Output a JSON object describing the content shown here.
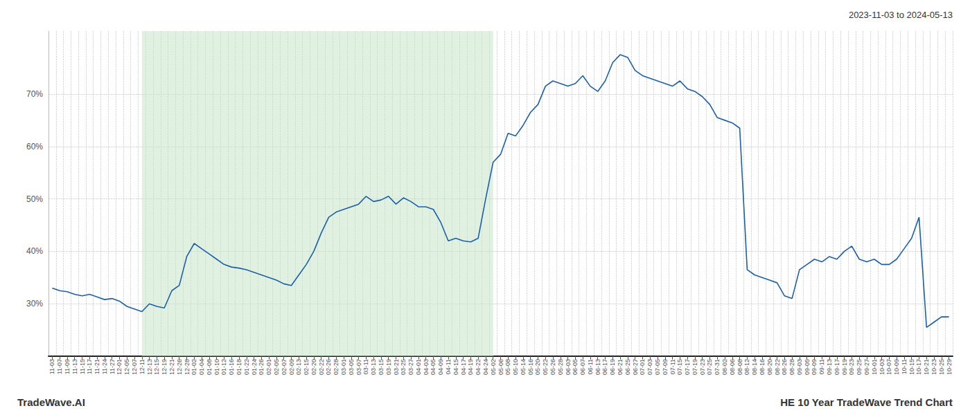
{
  "chart_data": {
    "type": "line",
    "title": "HE 10 Year TradeWave Trend Chart",
    "subtitle": "2023-11-03 to 2024-05-13",
    "annotations": [
      "TradeWave.AI"
    ],
    "color": "#1a5fa8",
    "grid": true,
    "ylim": [
      20,
      82
    ],
    "yticks": [
      {
        "value": 30,
        "label": "30%"
      },
      {
        "value": 40,
        "label": "40%"
      },
      {
        "value": 50,
        "label": "50%"
      },
      {
        "value": 60,
        "label": "60%"
      },
      {
        "value": 70,
        "label": "70%"
      }
    ],
    "highlight": {
      "start": "12-11",
      "end": "05-02",
      "color": "#c8e6c8"
    },
    "categories": [
      "11-03",
      "11-07",
      "11-09",
      "11-13",
      "11-15",
      "11-17",
      "11-21",
      "11-24",
      "11-27",
      "12-01",
      "12-05",
      "12-07",
      "12-11",
      "12-13",
      "12-15",
      "12-19",
      "12-21",
      "12-26",
      "12-28",
      "01-02",
      "01-04",
      "01-08",
      "01-10",
      "01-12",
      "01-16",
      "01-18",
      "01-22",
      "01-24",
      "01-26",
      "02-01",
      "02-05",
      "02-07",
      "02-09",
      "02-13",
      "02-15",
      "02-20",
      "02-22",
      "02-26",
      "02-28",
      "03-01",
      "03-05",
      "03-07",
      "03-11",
      "03-13",
      "03-15",
      "03-19",
      "03-21",
      "03-25",
      "03-27",
      "04-01",
      "04-03",
      "04-05",
      "04-09",
      "04-11",
      "04-15",
      "04-17",
      "04-19",
      "04-22",
      "04-24",
      "05-02",
      "05-06",
      "05-08",
      "05-10",
      "05-14",
      "05-16",
      "05-20",
      "05-22",
      "05-26",
      "05-28",
      "06-03",
      "06-05",
      "06-07",
      "06-11",
      "06-13",
      "06-17",
      "06-19",
      "06-21",
      "06-25",
      "06-27",
      "07-01",
      "07-03",
      "07-05",
      "07-09",
      "07-11",
      "07-15",
      "07-17",
      "07-19",
      "07-23",
      "07-25",
      "07-31",
      "08-02",
      "08-06",
      "08-08",
      "08-12",
      "08-14",
      "08-16",
      "08-20",
      "08-22",
      "08-26",
      "08-28",
      "09-03",
      "09-05",
      "09-09",
      "09-11",
      "09-13",
      "09-17",
      "09-19",
      "09-23",
      "09-25",
      "09-27",
      "10-01",
      "10-03",
      "10-07",
      "10-09",
      "10-11",
      "10-15",
      "10-17",
      "10-21",
      "10-23",
      "10-25",
      "10-29"
    ],
    "values": [
      33.0,
      32.5,
      32.3,
      31.8,
      31.5,
      31.8,
      31.3,
      30.8,
      31.0,
      30.5,
      29.5,
      29.0,
      28.5,
      30.0,
      29.5,
      29.2,
      32.5,
      33.5,
      39.0,
      41.5,
      40.5,
      39.5,
      38.5,
      37.5,
      37.0,
      36.8,
      36.5,
      36.0,
      35.5,
      35.0,
      34.5,
      33.8,
      33.5,
      35.5,
      37.5,
      40.0,
      43.5,
      46.5,
      47.5,
      48.0,
      48.5,
      49.0,
      50.5,
      49.5,
      49.8,
      50.5,
      49.0,
      50.2,
      49.5,
      48.5,
      48.5,
      48.0,
      45.5,
      42.0,
      42.5,
      42.0,
      41.8,
      42.5,
      50.0,
      57.0,
      58.5,
      62.5,
      62.0,
      64.0,
      66.5,
      68.0,
      71.5,
      72.5,
      72.0,
      71.5,
      72.0,
      73.5,
      71.5,
      70.5,
      72.5,
      76.0,
      77.5,
      77.0,
      74.5,
      73.5,
      73.0,
      72.5,
      72.0,
      71.5,
      72.5,
      71.0,
      70.5,
      69.5,
      68.0,
      65.5,
      65.0,
      64.5,
      63.5,
      36.5,
      35.5,
      35.0,
      34.5,
      34.0,
      31.5,
      31.0,
      36.5,
      37.5,
      38.5,
      38.0,
      39.0,
      38.5,
      40.0,
      41.0,
      38.5,
      38.0,
      38.5,
      37.5,
      37.5,
      38.5,
      40.5,
      42.5,
      46.5,
      25.5,
      26.5,
      27.5,
      27.5
    ]
  }
}
